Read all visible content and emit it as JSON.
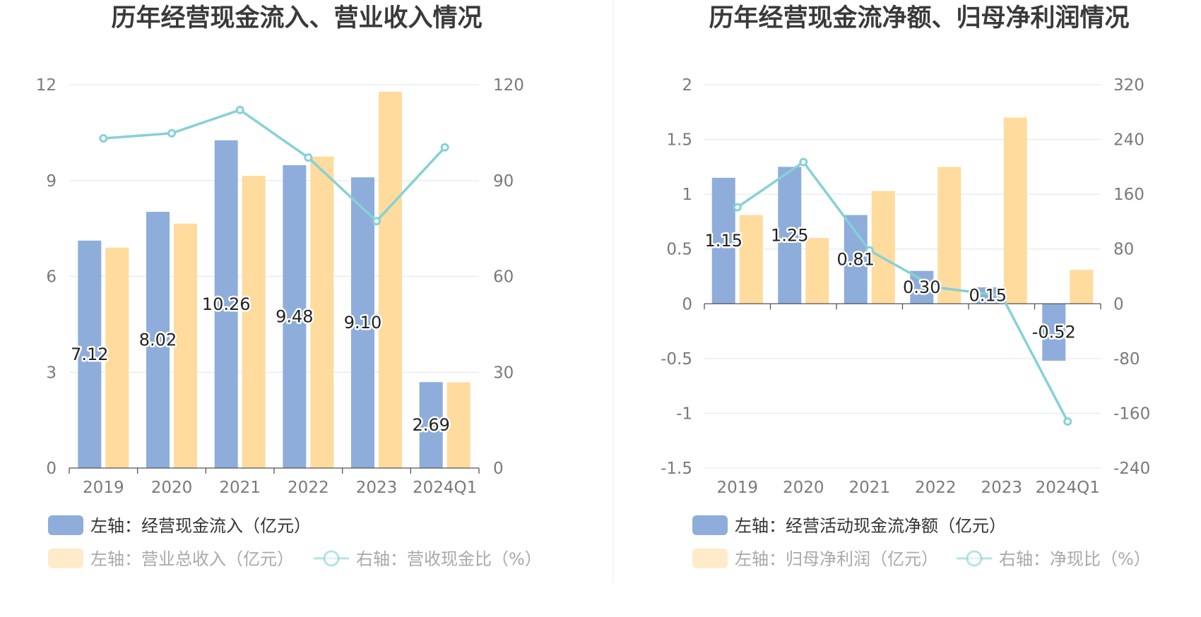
{
  "colors": {
    "blue": "#8eadda",
    "yellow": "#ffdb9e",
    "teal": "#86d1d6",
    "grid": "#e1e4ee",
    "axis": "#555555",
    "divider": "#eeeeee",
    "legend_active": "#333333",
    "legend_inactive": "#a9a9a9"
  },
  "chart_data": [
    {
      "type": "bar",
      "title": "历年经营现金流入、营业收入情况",
      "categories": [
        "2019",
        "2020",
        "2021",
        "2022",
        "2023",
        "2024Q1"
      ],
      "left_axis": {
        "ticks": [
          "0",
          "3",
          "6",
          "9",
          "12"
        ],
        "range": [
          0,
          12
        ]
      },
      "right_axis": {
        "ticks": [
          "0",
          "30",
          "60",
          "90",
          "120"
        ],
        "range": [
          0,
          120
        ]
      },
      "series": [
        {
          "name": "左轴：经营现金流入（亿元）",
          "kind": "bar",
          "axis": "left",
          "color": "#8eadda",
          "values": [
            7.12,
            8.02,
            10.26,
            9.48,
            9.1,
            2.69
          ],
          "labels": [
            "7.12",
            "8.02",
            "10.26",
            "9.48",
            "9.10",
            "2.69"
          ]
        },
        {
          "name": "左轴：营业总收入（亿元）",
          "kind": "bar",
          "axis": "left",
          "color": "#ffdb9e",
          "values": [
            6.9,
            7.65,
            9.15,
            9.75,
            11.78,
            2.68
          ]
        },
        {
          "name": "右轴：营收现金比（%）",
          "kind": "line",
          "axis": "right",
          "color": "#86d1d6",
          "values": [
            103.2,
            104.8,
            112.1,
            97.2,
            77.3,
            100.4
          ]
        }
      ]
    },
    {
      "type": "bar",
      "title": "历年经营现金流净额、归母净利润情况",
      "categories": [
        "2019",
        "2020",
        "2021",
        "2022",
        "2023",
        "2024Q1"
      ],
      "left_axis": {
        "ticks": [
          "-1.5",
          "-1",
          "-0.5",
          "0",
          "0.5",
          "1",
          "1.5",
          "2"
        ],
        "range": [
          -1.5,
          2
        ]
      },
      "right_axis": {
        "ticks": [
          "-240",
          "-160",
          "-80",
          "0",
          "80",
          "160",
          "240",
          "320"
        ],
        "range": [
          -240,
          320
        ]
      },
      "series": [
        {
          "name": "左轴：经营活动现金流净额（亿元）",
          "kind": "bar",
          "axis": "left",
          "color": "#8eadda",
          "values": [
            1.15,
            1.25,
            0.81,
            0.3,
            0.15,
            -0.52
          ],
          "labels": [
            "1.15",
            "1.25",
            "0.81",
            "0.30",
            "0.15",
            "-0.52"
          ]
        },
        {
          "name": "左轴：归母净利润（亿元）",
          "kind": "bar",
          "axis": "left",
          "color": "#ffdb9e",
          "values": [
            0.81,
            0.6,
            1.03,
            1.25,
            1.7,
            0.31
          ]
        },
        {
          "name": "右轴：净现比（%）",
          "kind": "line",
          "axis": "right",
          "color": "#86d1d6",
          "values": [
            141,
            207,
            78,
            24,
            12,
            -172
          ]
        }
      ]
    }
  ]
}
